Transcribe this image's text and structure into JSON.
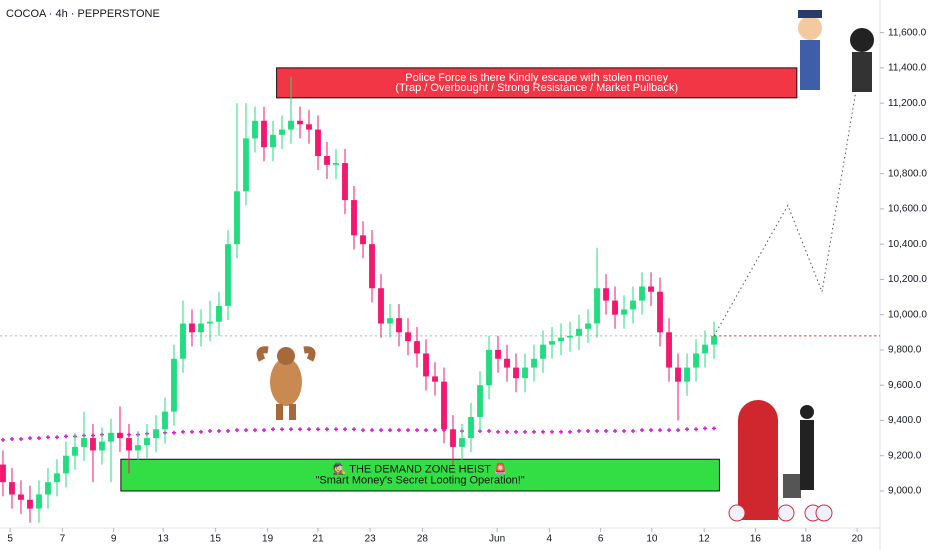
{
  "chart_data": {
    "type": "candlestick",
    "title": "COCOA · 4h · PEPPERSTONE",
    "up_color": "#22dd7f",
    "down_color": "#f5166e",
    "xlim": [
      -0.33,
      97.44
    ],
    "ylim": [
      8790,
      11785
    ],
    "yticks": [
      {
        "value": 9000,
        "label": "9,000.0"
      },
      {
        "value": 9200,
        "label": "9,200.0"
      },
      {
        "value": 9400,
        "label": "9,400.0"
      },
      {
        "value": 9600,
        "label": "9,600.0"
      },
      {
        "value": 9800,
        "label": "9,800.0"
      },
      {
        "value": 10000,
        "label": "10,000.0"
      },
      {
        "value": 10200,
        "label": "10,200.0"
      },
      {
        "value": 10400,
        "label": "10,400.0"
      },
      {
        "value": 10600,
        "label": "10,600.0"
      },
      {
        "value": 10800,
        "label": "10,800.0"
      },
      {
        "value": 11000,
        "label": "11,000.0"
      },
      {
        "value": 11200,
        "label": "11,200.0"
      },
      {
        "value": 11400,
        "label": "11,400.0"
      },
      {
        "value": 11600,
        "label": "11,600.0"
      }
    ],
    "xticks": [
      {
        "value": 0.8,
        "label": "5"
      },
      {
        "value": 6.6,
        "label": "7"
      },
      {
        "value": 12.3,
        "label": "9"
      },
      {
        "value": 17.8,
        "label": "13"
      },
      {
        "value": 23.6,
        "label": "15"
      },
      {
        "value": 29.4,
        "label": "19"
      },
      {
        "value": 35,
        "label": "21"
      },
      {
        "value": 40.8,
        "label": "23"
      },
      {
        "value": 46.6,
        "label": "28"
      },
      {
        "value": 54.9,
        "label": "Jun"
      },
      {
        "value": 60.7,
        "label": "4"
      },
      {
        "value": 66.4,
        "label": "6"
      },
      {
        "value": 72.1,
        "label": "10"
      },
      {
        "value": 77.9,
        "label": "12"
      },
      {
        "value": 83.6,
        "label": "16"
      },
      {
        "value": 89.2,
        "label": "18"
      },
      {
        "value": 94.9,
        "label": "20"
      }
    ],
    "open": [
      9150,
      9050,
      8980,
      8950,
      8900,
      8980,
      9050,
      9100,
      9200,
      9250,
      9300,
      9230,
      9280,
      9330,
      9300,
      9230,
      9260,
      9300,
      9350,
      9450,
      9750,
      9950,
      9900,
      9950,
      9960,
      10050,
      10400,
      10700,
      11000,
      11100,
      10950,
      11020,
      11050,
      11100,
      11080,
      11050,
      10900,
      10850,
      10860,
      10650,
      10450,
      10400,
      10150,
      9950,
      9980,
      9900,
      9850,
      9780,
      9650,
      9620,
      9350,
      9250,
      9300,
      9420,
      9600,
      9800,
      9750,
      9700,
      9640,
      9700,
      9750,
      9830,
      9850,
      9870,
      9880,
      9920,
      9950,
      10150,
      10080,
      10000,
      10030,
      10080,
      10160,
      10130,
      9900,
      9700,
      9620,
      9700,
      9780,
      9830
    ],
    "high": [
      9230,
      9130,
      9060,
      9030,
      9060,
      9130,
      9180,
      9280,
      9330,
      9450,
      9380,
      9360,
      9410,
      9480,
      9380,
      9340,
      9380,
      9430,
      9530,
      9830,
      10080,
      10030,
      10030,
      10080,
      10130,
      10480,
      11200,
      11200,
      11180,
      11180,
      11100,
      11130,
      11350,
      11180,
      11160,
      11130,
      10980,
      10940,
      10940,
      10730,
      10530,
      10480,
      10230,
      10060,
      10060,
      9980,
      9930,
      9860,
      9730,
      9700,
      9430,
      9380,
      9500,
      9680,
      9880,
      9880,
      9830,
      9780,
      9780,
      9830,
      9910,
      9930,
      9950,
      9960,
      10000,
      10030,
      10380,
      10230,
      10160,
      10110,
      10160,
      10240,
      10240,
      10210,
      9980,
      9780,
      9780,
      9860,
      9910,
      9960
    ],
    "low": [
      8970,
      8900,
      8870,
      8820,
      8820,
      8900,
      8970,
      9020,
      9120,
      9170,
      9050,
      9150,
      9050,
      9220,
      9100,
      9150,
      9180,
      9220,
      9270,
      9370,
      9670,
      9820,
      9820,
      9850,
      9880,
      9970,
      10320,
      10620,
      10920,
      10870,
      10870,
      10940,
      10970,
      11000,
      10970,
      10820,
      10770,
      10770,
      10570,
      10370,
      10320,
      10070,
      9870,
      9870,
      9820,
      9770,
      9700,
      9570,
      9540,
      9270,
      9150,
      9170,
      9220,
      9340,
      9520,
      9670,
      9620,
      9560,
      9560,
      9620,
      9670,
      9750,
      9770,
      9790,
      9800,
      9840,
      9870,
      10000,
      9920,
      9920,
      9950,
      10000,
      10050,
      9820,
      9620,
      9400,
      9540,
      9620,
      9700,
      9750
    ],
    "close": [
      9050,
      8980,
      8950,
      8900,
      8980,
      9050,
      9100,
      9200,
      9250,
      9300,
      9230,
      9280,
      9330,
      9300,
      9230,
      9260,
      9300,
      9350,
      9450,
      9750,
      9950,
      9900,
      9950,
      9960,
      10050,
      10400,
      10700,
      11000,
      11100,
      10950,
      11020,
      11050,
      11100,
      11080,
      11050,
      10900,
      10850,
      10860,
      10650,
      10450,
      10400,
      10150,
      9950,
      9980,
      9900,
      9850,
      9780,
      9650,
      9620,
      9350,
      9250,
      9300,
      9420,
      9600,
      9800,
      9750,
      9700,
      9640,
      9700,
      9750,
      9830,
      9850,
      9870,
      9880,
      9920,
      9950,
      10150,
      10080,
      10000,
      10030,
      10080,
      10160,
      10130,
      9900,
      9700,
      9620,
      9700,
      9780,
      9830,
      9880
    ],
    "indicator": {
      "color": "#d81bd8",
      "values": [
        9290,
        9295,
        9295,
        9300,
        9300,
        9305,
        9305,
        9310,
        9310,
        9315,
        9315,
        9320,
        9315,
        9320,
        9320,
        9320,
        9325,
        9325,
        9330,
        9330,
        9335,
        9335,
        9335,
        9340,
        9340,
        9340,
        9345,
        9345,
        9345,
        9345,
        9350,
        9350,
        9350,
        9350,
        9350,
        9350,
        9350,
        9350,
        9350,
        9350,
        9345,
        9345,
        9345,
        9345,
        9345,
        9345,
        9345,
        9345,
        9345,
        9345,
        9340,
        9340,
        9340,
        9340,
        9340,
        9335,
        9335,
        9335,
        9335,
        9335,
        9335,
        9335,
        9335,
        9335,
        9340,
        9340,
        9340,
        9340,
        9340,
        9340,
        9340,
        9345,
        9345,
        9345,
        9345,
        9345,
        9350,
        9350,
        9355,
        9355
      ]
    },
    "price_line": 9880,
    "projection": {
      "x": [
        79,
        87.2,
        91,
        94.7
      ],
      "values": [
        9880,
        10620,
        10130,
        11250
      ]
    },
    "annotations": [
      {
        "lines": [
          "Police Force is there Kindly escape with stolen money",
          "(Trap / Overbought / Strong Resistance / Market Pullback)"
        ],
        "color": "#f23645",
        "x_range": [
          30.4,
          88.2
        ],
        "y_range": [
          11230,
          11400
        ]
      },
      {
        "lines": [
          "🕵 THE DEMAND ZONE HEIST 🚨",
          "\"Smart Money's Secret Looting Operation!\""
        ],
        "color": "#33dd44",
        "x_range": [
          13.1,
          79.6
        ],
        "y_range": [
          9000,
          9180
        ]
      }
    ]
  }
}
